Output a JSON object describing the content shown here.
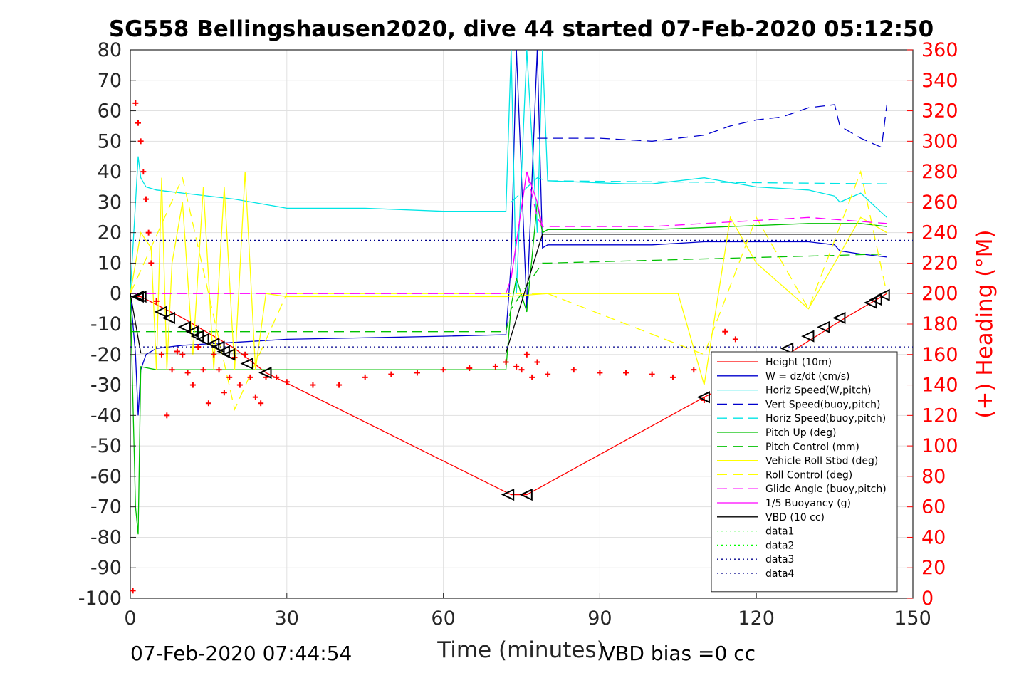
{
  "chart_data": {
    "type": "line",
    "title": "SG558 Bellingshausen2020, dive 44 started 07-Feb-2020 05:12:50",
    "xlabel": "Time (minutes)",
    "ylabel": "",
    "ylabel_right": "(+) Heading (°M)",
    "xlim": [
      0,
      150
    ],
    "ylim": [
      -100,
      80
    ],
    "ylim_right": [
      0,
      360
    ],
    "x_ticks": [
      "0",
      "30",
      "60",
      "90",
      "120",
      "150"
    ],
    "y_ticks": [
      "80",
      "70",
      "60",
      "50",
      "40",
      "30",
      "20",
      "10",
      "0",
      "-10",
      "-20",
      "-30",
      "-40",
      "-50",
      "-60",
      "-70",
      "-80",
      "-90",
      "-100"
    ],
    "y_ticks_right": [
      "360",
      "340",
      "320",
      "300",
      "280",
      "260",
      "240",
      "220",
      "200",
      "180",
      "160",
      "140",
      "120",
      "100",
      "80",
      "60",
      "40",
      "20",
      "0"
    ],
    "grid": true,
    "legend_position": "bottom-right",
    "footer_left": "07-Feb-2020 07:44:54",
    "footer_right": "VBD bias =0 cc",
    "colors": {
      "red": "#ff0000",
      "blue": "#0000cd",
      "cyan": "#00e5e5",
      "green": "#00c000",
      "yellow": "#ffff00",
      "magenta": "#ff00ff",
      "black": "#000000",
      "lime": "#00ff00",
      "navy": "#00008b"
    },
    "series": [
      {
        "name": "Height (10m)",
        "color": "#ff0000",
        "dash": "",
        "x": [
          0,
          2,
          10,
          20,
          26,
          73,
          76,
          110,
          125,
          137,
          145
        ],
        "y": [
          -1,
          -1,
          -8,
          -18,
          -26,
          -66,
          -66,
          -34,
          -21,
          -8,
          0
        ]
      },
      {
        "name": "W = dz/dt (cm/s)",
        "color": "#0000cd",
        "dash": "",
        "x": [
          0,
          1,
          1.5,
          2,
          3,
          5,
          10,
          20,
          30,
          45,
          60,
          72,
          73,
          74,
          76,
          78,
          79,
          80,
          95,
          100,
          110,
          120,
          130,
          135,
          136,
          140,
          145
        ],
        "y": [
          0,
          -20,
          -40,
          -25,
          -20,
          -18,
          -17,
          -16,
          -15,
          -14.5,
          -14,
          -13.5,
          10,
          80,
          -5,
          80,
          15,
          16,
          16,
          16,
          17,
          17,
          17,
          16,
          14,
          13,
          12
        ]
      },
      {
        "name": "Horiz Speed(W,pitch)",
        "color": "#00e5e5",
        "dash": "",
        "x": [
          0,
          1.5,
          2,
          3,
          5,
          10,
          20,
          30,
          45,
          60,
          72,
          73,
          74,
          76,
          78,
          79,
          80,
          95,
          100,
          110,
          120,
          130,
          135,
          136,
          140,
          145
        ],
        "y": [
          0,
          45,
          38,
          35,
          34,
          33,
          31,
          28,
          28,
          27,
          27,
          80,
          0,
          80,
          20,
          80,
          37,
          36,
          36,
          38,
          35,
          34,
          32,
          30,
          33,
          25
        ]
      },
      {
        "name": "Vert Speed(buoy,pitch)",
        "color": "#0000cd",
        "dash": "14,8",
        "x": [
          78,
          80,
          90,
          100,
          110,
          115,
          120,
          125,
          130,
          135,
          136,
          140,
          144,
          145
        ],
        "y": [
          51,
          51,
          51,
          50,
          52,
          55,
          57,
          58,
          61,
          62,
          55,
          51,
          48,
          62
        ]
      },
      {
        "name": "Horiz Speed(buoy,pitch)",
        "color": "#00e5e5",
        "dash": "14,8",
        "x": [
          73,
          78,
          80,
          145
        ],
        "y": [
          30,
          38,
          37,
          36
        ]
      },
      {
        "name": "Pitch Up (deg)",
        "color": "#00c000",
        "dash": "",
        "x": [
          0,
          1,
          1.5,
          2,
          5,
          30,
          60,
          72,
          73,
          74,
          76,
          78,
          79,
          80,
          100,
          130,
          140,
          145
        ],
        "y": [
          0,
          -70,
          -79,
          -24,
          -25,
          -25,
          -25,
          -25,
          -4,
          5,
          -6,
          30,
          20,
          21,
          21,
          23,
          23,
          22
        ]
      },
      {
        "name": "Pitch Control (mm)",
        "color": "#00c000",
        "dash": "14,8",
        "x": [
          0,
          3,
          72,
          73,
          79,
          80,
          145
        ],
        "y": [
          -12.5,
          -12.5,
          -12.5,
          -5,
          10,
          10,
          13
        ]
      },
      {
        "name": "Vehicle Roll Stbd (deg)",
        "color": "#ffff00",
        "dash": "",
        "x": [
          0,
          2,
          4,
          5,
          6,
          7,
          8,
          10,
          12,
          14,
          16,
          18,
          20,
          22,
          24,
          26,
          30,
          60,
          72,
          80,
          105,
          110,
          115,
          120,
          130,
          140,
          145
        ],
        "y": [
          0,
          20,
          15,
          -25,
          38,
          -25,
          10,
          30,
          -20,
          35,
          -25,
          35,
          -25,
          40,
          -25,
          0,
          -1,
          -1,
          -1,
          0,
          0,
          -30,
          25,
          10,
          -5,
          25,
          20
        ]
      },
      {
        "name": "Roll Control (deg)",
        "color": "#ffff00",
        "dash": "14,8",
        "x": [
          0,
          10,
          20,
          30,
          60,
          72,
          80,
          110,
          120,
          130,
          140,
          145
        ],
        "y": [
          0,
          38,
          -38,
          0,
          0,
          0,
          0,
          -20,
          25,
          -5,
          40,
          0
        ]
      },
      {
        "name": "Glide Angle (buoy,pitch)",
        "color": "#ff00ff",
        "dash": "14,8",
        "x": [
          0,
          30,
          72,
          73,
          76,
          78,
          79,
          80,
          100,
          130,
          145
        ],
        "y": [
          0,
          0,
          0,
          5,
          40,
          25,
          22,
          22,
          22,
          25,
          23
        ]
      },
      {
        "name": "1/5 Buoyancy (g)",
        "color": "#ff00ff",
        "dash": "",
        "x": [
          73,
          76,
          78,
          79
        ],
        "y": [
          5,
          40,
          30,
          22
        ]
      },
      {
        "name": "VBD (10 cc)",
        "color": "#000000",
        "dash": "",
        "x": [
          0,
          2,
          3,
          72,
          79,
          145
        ],
        "y": [
          0,
          -19.5,
          -19.5,
          -19.5,
          19.5,
          19.5
        ]
      },
      {
        "name": "data1",
        "color": "#00ff00",
        "dash": "2,4",
        "x": [],
        "y": []
      },
      {
        "name": "data2",
        "color": "#00ff00",
        "dash": "2,4",
        "x": [],
        "y": []
      },
      {
        "name": "data3",
        "color": "#00008b",
        "dash": "2,4",
        "x": [
          0,
          150
        ],
        "y": [
          17.5,
          17.5
        ]
      },
      {
        "name": "data4",
        "color": "#00008b",
        "dash": "2,4",
        "x": [
          0,
          150
        ],
        "y": [
          -17.5,
          -17.5
        ]
      }
    ],
    "heading_series": {
      "name": "Heading",
      "axis": "right",
      "color": "#ff0000",
      "marker": "+",
      "x": [
        0.5,
        1,
        1.5,
        2,
        2.5,
        3,
        3.5,
        4,
        5,
        6,
        7,
        8,
        9,
        10,
        11,
        12,
        13,
        14,
        15,
        16,
        17,
        18,
        19,
        20,
        21,
        22,
        23,
        24,
        25,
        26,
        28,
        30,
        35,
        40,
        45,
        50,
        55,
        60,
        65,
        70,
        72,
        74,
        75,
        76,
        77,
        78,
        80,
        85,
        90,
        95,
        100,
        104,
        108,
        110,
        112,
        114,
        116
      ],
      "y": [
        5,
        325,
        312,
        300,
        280,
        262,
        240,
        220,
        195,
        160,
        120,
        150,
        162,
        160,
        148,
        140,
        165,
        150,
        128,
        160,
        150,
        135,
        145,
        158,
        140,
        160,
        145,
        132,
        128,
        145,
        145,
        142,
        140,
        140,
        145,
        147,
        148,
        150,
        151,
        152,
        155,
        152,
        150,
        160,
        145,
        155,
        147,
        150,
        148,
        148,
        147,
        145,
        150,
        130,
        150,
        175,
        170
      ]
    },
    "marker_series": {
      "name": "",
      "color": "#000000",
      "marker": "triangle",
      "x": [
        1.5,
        2,
        6,
        7.5,
        10.5,
        12,
        13,
        14,
        16,
        17,
        18,
        19,
        22.5,
        26,
        72.5,
        76,
        110,
        126,
        130,
        133,
        136,
        142,
        143,
        144.5
      ],
      "y": [
        -1,
        -1,
        -6,
        -8,
        -11,
        -12.5,
        -14,
        -15,
        -16.5,
        -17.5,
        -19,
        -20,
        -23,
        -26,
        -66,
        -66,
        -34,
        -18,
        -14,
        -11,
        -8,
        -3,
        -2,
        -0.5
      ]
    }
  }
}
